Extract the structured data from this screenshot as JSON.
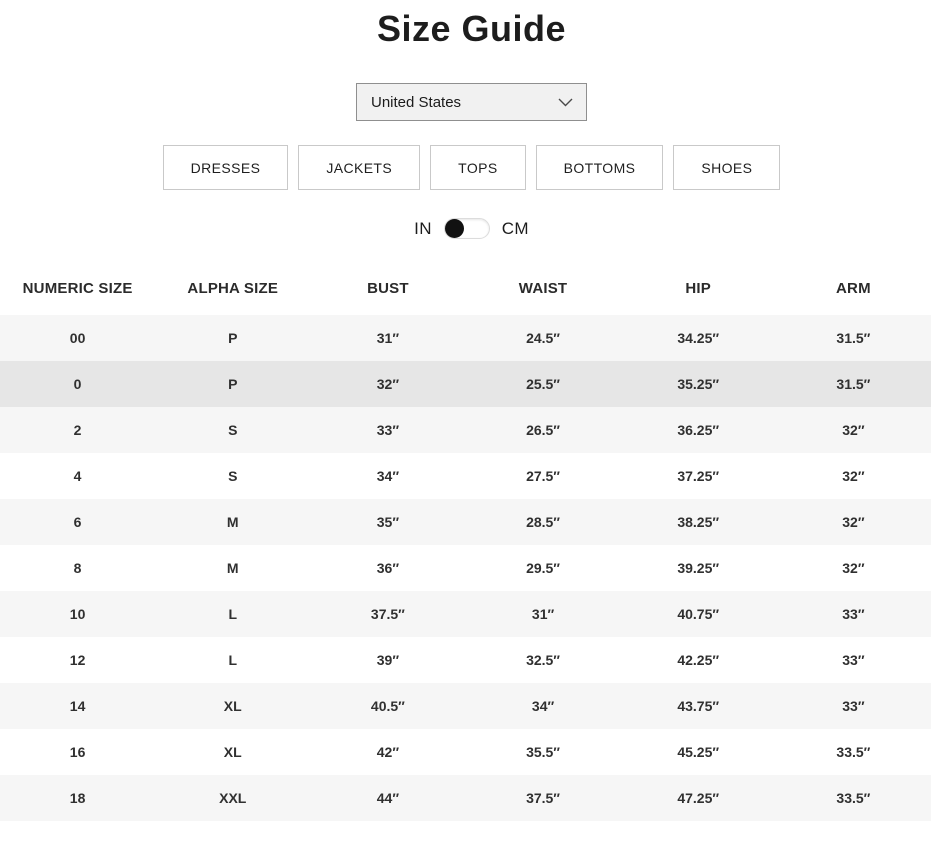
{
  "page": {
    "title": "Size Guide"
  },
  "region_select": {
    "value": "United States"
  },
  "category_tabs": [
    {
      "label": "DRESSES"
    },
    {
      "label": "JACKETS"
    },
    {
      "label": "TOPS"
    },
    {
      "label": "BOTTOMS"
    },
    {
      "label": "SHOES"
    }
  ],
  "unit_toggle": {
    "left_label": "IN",
    "right_label": "CM",
    "selected": "IN"
  },
  "size_table": {
    "headers": [
      "NUMERIC SIZE",
      "ALPHA SIZE",
      "BUST",
      "WAIST",
      "HIP",
      "ARM"
    ],
    "highlighted_row_index": 1,
    "rows": [
      [
        "00",
        "P",
        "31″",
        "24.5″",
        "34.25″",
        "31.5″"
      ],
      [
        "0",
        "P",
        "32″",
        "25.5″",
        "35.25″",
        "31.5″"
      ],
      [
        "2",
        "S",
        "33″",
        "26.5″",
        "36.25″",
        "32″"
      ],
      [
        "4",
        "S",
        "34″",
        "27.5″",
        "37.25″",
        "32″"
      ],
      [
        "6",
        "M",
        "35″",
        "28.5″",
        "38.25″",
        "32″"
      ],
      [
        "8",
        "M",
        "36″",
        "29.5″",
        "39.25″",
        "32″"
      ],
      [
        "10",
        "L",
        "37.5″",
        "31″",
        "40.75″",
        "33″"
      ],
      [
        "12",
        "L",
        "39″",
        "32.5″",
        "42.25″",
        "33″"
      ],
      [
        "14",
        "XL",
        "40.5″",
        "34″",
        "43.75″",
        "33″"
      ],
      [
        "16",
        "XL",
        "42″",
        "35.5″",
        "45.25″",
        "33.5″"
      ],
      [
        "18",
        "XXL",
        "44″",
        "37.5″",
        "47.25″",
        "33.5″"
      ]
    ]
  },
  "colors": {
    "row_stripe": "#f6f6f6",
    "row_highlight": "#e6e6e6",
    "table_text": "#2f2f2f",
    "tab_border": "#c9c9c9",
    "select_bg": "#f1f1f1",
    "select_border": "#8f8f8f",
    "toggle_knob": "#111111"
  }
}
